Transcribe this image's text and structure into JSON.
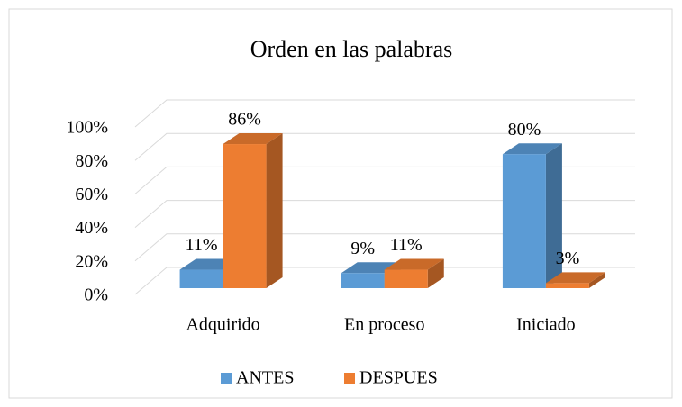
{
  "chart_data": {
    "type": "bar3d",
    "title": "Orden en las palabras",
    "categories": [
      "Adquirido",
      "En proceso",
      "Iniciado"
    ],
    "series": [
      {
        "name": "ANTES",
        "color": "#5b9bd5",
        "values": [
          11,
          9,
          80
        ],
        "value_labels": [
          "11%",
          "9%",
          "80%"
        ]
      },
      {
        "name": "DESPUES",
        "color": "#ed7d31",
        "values": [
          86,
          11,
          3
        ],
        "value_labels": [
          "86%",
          "11%",
          "3%"
        ]
      }
    ],
    "ylim": [
      0,
      100
    ],
    "yticks": [
      {
        "value": 0,
        "label": "0%"
      },
      {
        "value": 20,
        "label": "20%"
      },
      {
        "value": 40,
        "label": "40%"
      },
      {
        "value": 60,
        "label": "60%"
      },
      {
        "value": 80,
        "label": "80%"
      },
      {
        "value": 100,
        "label": "100%"
      }
    ],
    "grid": true,
    "legend": "bottom"
  }
}
